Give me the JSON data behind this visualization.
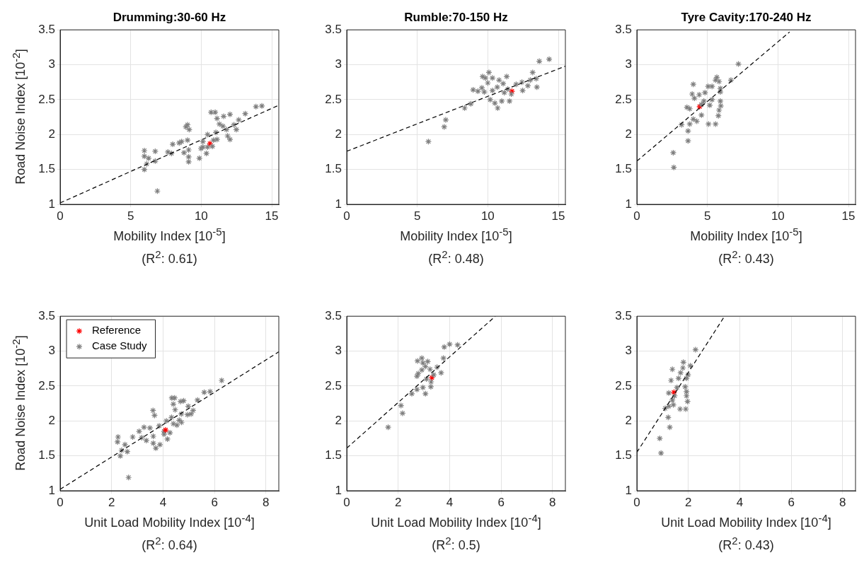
{
  "chart_data": [
    {
      "type": "scatter",
      "title": "Drumming:30-60 Hz",
      "xlabel": "Mobility Index [10$^{-5}$]",
      "ylabel": "Road Noise Index [10$^{-2}$]",
      "annotations": [
        "(R$^{2}$: 0.61)"
      ],
      "xlim": [
        0,
        15.5
      ],
      "xticks": [
        0,
        5,
        10,
        15
      ],
      "ylim": [
        1,
        3.5
      ],
      "yticks": [
        1,
        1.5,
        2,
        2.5,
        3,
        3.5
      ],
      "grid": true,
      "marker": "cross",
      "series": [
        {
          "type": "scatter",
          "color": "#808080",
          "x": [
            6.89,
            5.97,
            5.97,
            6.27,
            6.14,
            5.97,
            6.74,
            6.74,
            7.64,
            7.89,
            7.98,
            8.44,
            8.78,
            8.91,
            9.03,
            9.15,
            9.03,
            9.11,
            9.11,
            9.11,
            8.61,
            9.87,
            9.98,
            10.12,
            10.45,
            10.37,
            10.79,
            10.87,
            11.12,
            11.04,
            10.7,
            10.99,
            11.12,
            11.29,
            11.54,
            11.59,
            12.04,
            11.79,
            11.87,
            12.04,
            12.32,
            12.49,
            12.66,
            13.12,
            13.88,
            14.3,
            10.45,
            10.12
          ],
          "values": [
            1.19,
            1.77,
            1.69,
            1.66,
            1.58,
            1.5,
            1.76,
            1.62,
            1.75,
            1.73,
            1.86,
            1.88,
            1.74,
            2.11,
            2.14,
            2.07,
            1.92,
            1.78,
            1.68,
            1.61,
            1.9,
            1.66,
            1.8,
            1.9,
            2.0,
            1.73,
            1.83,
            1.92,
            1.93,
            2.03,
            2.32,
            2.32,
            2.23,
            2.15,
            2.12,
            2.26,
            2.29,
            2.07,
            1.98,
            1.93,
            2.14,
            2.07,
            2.21,
            2.3,
            2.4,
            2.41,
            1.82,
            1.82
          ]
        },
        {
          "type": "scatter",
          "color": "#ff0000",
          "x": [
            10.62
          ],
          "values": [
            1.87
          ]
        },
        {
          "type": "line",
          "color": "#000000",
          "line_style": "dashed",
          "marker": "none",
          "x": [
            0,
            15.5
          ],
          "values": [
            1.02,
            2.42
          ]
        }
      ]
    },
    {
      "type": "scatter",
      "title": "Rumble:70-150 Hz",
      "xlabel": "Mobility Index [10$^{-5}$]",
      "annotations": [
        "(R$^{2}$: 0.48)"
      ],
      "xlim": [
        0,
        15.5
      ],
      "xticks": [
        0,
        5,
        10,
        15
      ],
      "ylim": [
        1,
        3.5
      ],
      "yticks": [
        1,
        1.5,
        2,
        2.5,
        3,
        3.5
      ],
      "grid": true,
      "marker": "cross",
      "series": [
        {
          "type": "scatter",
          "color": "#808080",
          "x": [
            5.79,
            6.91,
            7.02,
            8.36,
            8.8,
            8.96,
            9.3,
            9.58,
            9.75,
            9.63,
            9.83,
            10.08,
            10.0,
            10.33,
            10.17,
            10.5,
            10.7,
            10.8,
            11.09,
            11.34,
            10.99,
            10.67,
            10.33,
            11.17,
            11.54,
            11.42,
            12.01,
            12.42,
            12.47,
            12.84,
            13.01,
            13.18,
            13.43,
            13.48,
            13.65,
            14.35,
            11.67
          ],
          "values": [
            1.9,
            2.11,
            2.21,
            2.38,
            2.44,
            2.64,
            2.62,
            2.67,
            2.61,
            2.83,
            2.81,
            2.89,
            2.74,
            2.81,
            2.5,
            2.45,
            2.38,
            2.78,
            2.73,
            2.83,
            2.48,
            2.68,
            2.63,
            2.6,
            2.48,
            2.65,
            2.72,
            2.75,
            2.63,
            2.7,
            2.78,
            2.89,
            2.8,
            2.68,
            3.05,
            3.08,
            2.58
          ]
        },
        {
          "type": "scatter",
          "color": "#ff0000",
          "x": [
            11.71
          ],
          "values": [
            2.62
          ]
        },
        {
          "type": "line",
          "color": "#000000",
          "line_style": "dashed",
          "marker": "none",
          "x": [
            0,
            15.5
          ],
          "values": [
            1.76,
            2.98
          ]
        }
      ]
    },
    {
      "type": "scatter",
      "title": "Tyre Cavity:170-240 Hz",
      "xlabel": "Mobility Index [10$^{-5}$]",
      "annotations": [
        "(R$^{2}$: 0.43)"
      ],
      "xlim": [
        0,
        15.5
      ],
      "xticks": [
        0,
        5,
        10,
        15
      ],
      "ylim": [
        1,
        3.5
      ],
      "yticks": [
        1,
        1.5,
        2,
        2.5,
        3,
        3.5
      ],
      "grid": true,
      "marker": "cross",
      "series": [
        {
          "type": "scatter",
          "color": "#808080",
          "x": [
            2.62,
            2.58,
            3.63,
            3.63,
            3.17,
            3.75,
            4.0,
            4.25,
            4.58,
            3.55,
            3.75,
            3.92,
            4.08,
            4.0,
            4.42,
            4.75,
            4.83,
            5.05,
            5.33,
            5.33,
            5.17,
            5.08,
            5.58,
            5.67,
            5.58,
            5.83,
            5.92,
            5.92,
            5.92,
            5.95,
            5.83,
            5.78,
            6.67,
            7.2,
            4.58
          ],
          "values": [
            1.53,
            1.74,
            1.91,
            2.05,
            2.14,
            2.15,
            2.22,
            2.19,
            2.28,
            2.39,
            2.37,
            2.58,
            2.52,
            2.72,
            2.57,
            2.48,
            2.6,
            2.69,
            2.69,
            2.5,
            2.42,
            2.15,
            2.15,
            2.82,
            2.78,
            2.76,
            2.66,
            2.61,
            2.48,
            2.41,
            2.35,
            2.27,
            2.78,
            3.01,
            2.43
          ]
        },
        {
          "type": "scatter",
          "color": "#ff0000",
          "x": [
            4.45
          ],
          "values": [
            2.4
          ]
        },
        {
          "type": "line",
          "color": "#000000",
          "line_style": "dashed",
          "marker": "none",
          "x": [
            0,
            10.83
          ],
          "values": [
            1.62,
            3.47
          ]
        }
      ]
    },
    {
      "type": "scatter",
      "xlabel": "Unit Load Mobility Index [10$^{-4}$]",
      "ylabel": "Road Noise Index [10$^{-2}$]",
      "annotations": [
        "(R$^{2}$: 0.64)"
      ],
      "xlim": [
        0,
        8.5
      ],
      "xticks": [
        0,
        2,
        4,
        6,
        8
      ],
      "ylim": [
        1,
        3.5
      ],
      "yticks": [
        1,
        1.5,
        2,
        2.5,
        3,
        3.5
      ],
      "grid": true,
      "marker": "cross",
      "legend": "top left",
      "series": [
        {
          "type": "scatter",
          "name": "Reference",
          "color": "#ff0000",
          "x": [
            4.1
          ],
          "values": [
            1.87
          ]
        },
        {
          "type": "scatter",
          "name": "Case Study",
          "color": "#808080",
          "x": [
            2.66,
            2.25,
            2.23,
            2.34,
            2.39,
            2.52,
            2.61,
            2.82,
            3.07,
            3.17,
            3.26,
            3.35,
            3.49,
            3.61,
            3.67,
            3.62,
            3.62,
            3.72,
            3.88,
            3.85,
            4.04,
            4.17,
            4.13,
            4.27,
            4.33,
            4.4,
            4.34,
            4.45,
            4.4,
            4.47,
            4.54,
            4.63,
            4.71,
            4.72,
            4.68,
            4.8,
            4.98,
            4.95,
            5.09,
            5.17,
            5.34,
            5.6,
            5.83,
            6.28,
            4.04
          ],
          "values": [
            1.19,
            1.77,
            1.7,
            1.5,
            1.58,
            1.66,
            1.56,
            1.77,
            1.85,
            1.76,
            1.91,
            1.72,
            1.9,
            2.15,
            2.08,
            1.78,
            1.68,
            1.61,
            1.66,
            1.93,
            1.85,
            1.74,
            2.0,
            1.83,
            2.05,
            1.96,
            2.33,
            2.33,
            2.24,
            2.16,
            1.94,
            2.01,
            2.1,
            1.98,
            2.28,
            2.29,
            2.21,
            2.09,
            2.1,
            2.15,
            2.3,
            2.41,
            2.42,
            2.58,
            1.81
          ]
        },
        {
          "type": "line",
          "color": "#000000",
          "line_style": "dashed",
          "marker": "none",
          "x": [
            0,
            8.5
          ],
          "values": [
            1.02,
            2.99
          ]
        }
      ]
    },
    {
      "type": "scatter",
      "xlabel": "Unit Load Mobility Index [10$^{-4}$]",
      "annotations": [
        "(R$^{2}$: 0.5)"
      ],
      "xlim": [
        0,
        8.5
      ],
      "xticks": [
        0,
        2,
        4,
        6,
        8
      ],
      "ylim": [
        1,
        3.5
      ],
      "yticks": [
        1,
        1.5,
        2,
        2.5,
        3,
        3.5
      ],
      "grid": true,
      "marker": "cross",
      "series": [
        {
          "type": "scatter",
          "color": "#808080",
          "x": [
            1.61,
            2.11,
            2.17,
            2.53,
            2.73,
            3.06,
            2.96,
            3.27,
            2.73,
            2.78,
            2.92,
            2.92,
            2.75,
            2.96,
            3.15,
            3.06,
            3.24,
            3.1,
            3.38,
            3.51,
            3.67,
            3.76,
            3.79,
            4.0,
            4.31,
            3.28
          ],
          "values": [
            1.91,
            2.22,
            2.11,
            2.39,
            2.45,
            2.39,
            2.48,
            2.49,
            2.64,
            2.68,
            2.73,
            2.9,
            2.86,
            2.83,
            2.85,
            2.78,
            2.74,
            2.6,
            2.66,
            2.77,
            2.69,
            2.9,
            3.06,
            3.1,
            3.09,
            2.56
          ]
        },
        {
          "type": "scatter",
          "color": "#ff0000",
          "x": [
            3.31
          ],
          "values": [
            2.62
          ]
        },
        {
          "type": "line",
          "color": "#000000",
          "line_style": "dashed",
          "marker": "none",
          "x": [
            0,
            5.78
          ],
          "values": [
            1.61,
            3.5
          ]
        }
      ]
    },
    {
      "type": "scatter",
      "xlabel": "Unit Load Mobility Index [10$^{-4}$]",
      "annotations": [
        "(R$^{2}$: 0.43)"
      ],
      "xlim": [
        0,
        8.5
      ],
      "xticks": [
        0,
        2,
        4,
        6,
        8
      ],
      "ylim": [
        1,
        3.5
      ],
      "yticks": [
        1,
        1.5,
        2,
        2.5,
        3,
        3.5
      ],
      "grid": true,
      "marker": "cross",
      "series": [
        {
          "type": "scatter",
          "color": "#808080",
          "x": [
            0.94,
            0.89,
            1.28,
            1.22,
            1.1,
            1.24,
            1.42,
            1.68,
            1.9,
            1.97,
            1.93,
            1.93,
            1.88,
            1.24,
            1.38,
            1.33,
            1.38,
            1.62,
            1.56,
            1.7,
            1.79,
            1.81,
            1.93,
            1.99,
            2.08,
            2.28,
            1.47
          ],
          "values": [
            1.54,
            1.75,
            1.91,
            2.05,
            2.18,
            2.21,
            2.23,
            2.17,
            2.17,
            2.28,
            2.36,
            2.42,
            2.49,
            2.4,
            2.3,
            2.58,
            2.74,
            2.61,
            2.48,
            2.69,
            2.76,
            2.84,
            2.61,
            2.66,
            2.79,
            3.02,
            2.36
          ]
        },
        {
          "type": "scatter",
          "color": "#ff0000",
          "x": [
            1.44
          ],
          "values": [
            2.41
          ]
        },
        {
          "type": "line",
          "color": "#000000",
          "line_style": "dashed",
          "marker": "none",
          "x": [
            0,
            3.41
          ],
          "values": [
            1.55,
            3.5
          ]
        }
      ]
    }
  ]
}
